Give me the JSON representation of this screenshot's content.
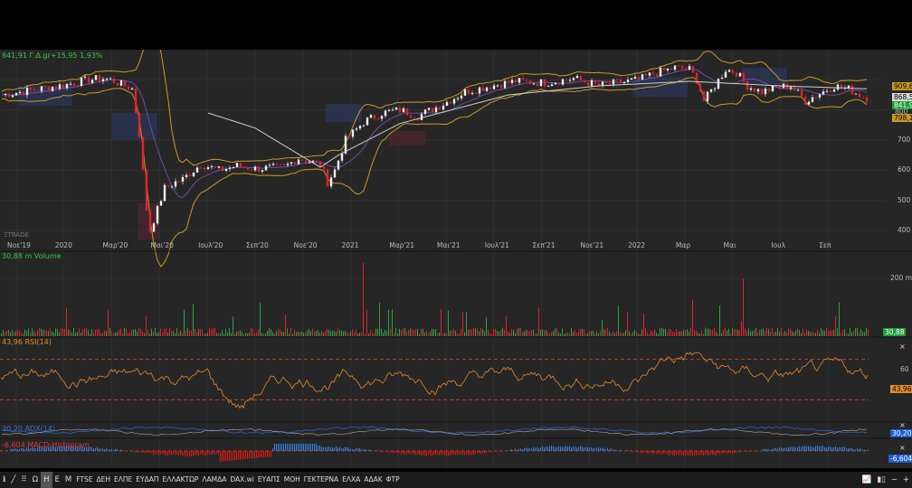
{
  "header": {
    "price_label": "841,91 Γ.Δ.gr+15,95 1,93%",
    "watermark": "ΞTRADE"
  },
  "panes": {
    "volume_label": "30,88 m Volume",
    "rsi_label": "43,96 RSI(14)",
    "adx_label": "30,20 ADX(14)",
    "macd_label": "-6,604 MACD-Histogram"
  },
  "right_badges": {
    "upper_band": "909,6",
    "ma": "868,56",
    "last": "841,91",
    "lower": "798,1",
    "mid_tick": "800",
    "volume_last": "30,88",
    "rsi_last": "43,96",
    "adx_last": "30,20",
    "macd_last": "-6,604"
  },
  "close_buttons": [
    "×",
    "×",
    "×"
  ],
  "toolbar": {
    "items": [
      "Ω",
      "Η",
      "Ε",
      "Μ"
    ],
    "active": "Η",
    "symbols": [
      "FTSE",
      "ΔΕΗ",
      "ΕΛΠΕ",
      "ΕΥΔΑΠ",
      "ΕΛΛΑΚΤΩΡ",
      "ΛΑΜΔΑ",
      "DAX.wi",
      "ΕΥΑΠΣ",
      "ΜΟΗ",
      "ΓΕΚΤΕΡΝΑ",
      "ΕΛΧΑ",
      "ΑΔΑΚ",
      "ΦΤΡ"
    ]
  },
  "colors": {
    "bg": "#262626",
    "up": "#2ea043",
    "down": "#e0212f",
    "rsi": "#e38b2a",
    "band": "#c89a28",
    "ma": "#d0d0d0",
    "macd_pos": "#2f86e8",
    "macd_neg": "#e01818",
    "adx": "#2f5fd0"
  },
  "chart_data": {
    "type": "candlestick",
    "price": {
      "x_ticks": [
        "Νοε'19",
        "2020",
        "Μαρ'20",
        "Μαι'20",
        "Ιουλ'20",
        "Σεπ'20",
        "Νοε'20",
        "2021",
        "Μαρ'21",
        "Μαι'21",
        "Ιουλ'21",
        "Σεπ'21",
        "Νοε'21",
        "2022",
        "Μαρ",
        "Μαι",
        "Ιουλ",
        "Σεπ"
      ],
      "y_ticks": [
        400,
        500,
        600,
        700
      ],
      "ylim": [
        370,
        1000
      ],
      "close_path": [
        [
          0,
          850
        ],
        [
          8,
          865
        ],
        [
          16,
          880
        ],
        [
          24,
          900
        ],
        [
          28,
          905
        ],
        [
          30,
          900
        ],
        [
          36,
          870
        ],
        [
          38,
          720
        ],
        [
          40,
          470
        ],
        [
          41,
          400
        ],
        [
          43,
          470
        ],
        [
          45,
          540
        ],
        [
          48,
          560
        ],
        [
          50,
          570
        ],
        [
          55,
          620
        ],
        [
          60,
          600
        ],
        [
          65,
          615
        ],
        [
          70,
          605
        ],
        [
          78,
          610
        ],
        [
          82,
          640
        ],
        [
          88,
          620
        ],
        [
          90,
          560
        ],
        [
          92,
          600
        ],
        [
          95,
          700
        ],
        [
          100,
          760
        ],
        [
          105,
          790
        ],
        [
          110,
          800
        ],
        [
          115,
          780
        ],
        [
          122,
          820
        ],
        [
          128,
          860
        ],
        [
          135,
          880
        ],
        [
          142,
          895
        ],
        [
          150,
          890
        ],
        [
          158,
          905
        ],
        [
          165,
          880
        ],
        [
          170,
          890
        ],
        [
          176,
          900
        ],
        [
          180,
          920
        ],
        [
          186,
          940
        ],
        [
          190,
          935
        ],
        [
          192,
          900
        ],
        [
          194,
          830
        ],
        [
          197,
          880
        ],
        [
          200,
          935
        ],
        [
          203,
          925
        ],
        [
          206,
          880
        ],
        [
          210,
          860
        ],
        [
          214,
          875
        ],
        [
          218,
          880
        ],
        [
          222,
          830
        ],
        [
          226,
          855
        ],
        [
          230,
          880
        ],
        [
          234,
          870
        ],
        [
          237,
          850
        ],
        [
          239,
          840
        ]
      ],
      "ma_path": [
        [
          57,
          790
        ],
        [
          70,
          740
        ],
        [
          88,
          610
        ],
        [
          93,
          650
        ],
        [
          110,
          755
        ],
        [
          140,
          850
        ],
        [
          165,
          880
        ],
        [
          190,
          895
        ],
        [
          215,
          880
        ],
        [
          239,
          870
        ]
      ],
      "annotation_line": [
        [
          57,
          790
        ],
        [
          88,
          610
        ]
      ]
    },
    "volume": {
      "ylim": [
        0,
        280
      ],
      "y_ticks": [
        200
      ],
      "unit": "m",
      "last": 30.88
    },
    "rsi": {
      "ylim": [
        10,
        90
      ],
      "y_ticks": [
        60
      ],
      "upper": 70,
      "lower": 30,
      "last": 43.96,
      "period": 14
    },
    "adx": {
      "last": 30.2,
      "period": 14
    },
    "macd_hist": {
      "last": -6.604
    }
  }
}
